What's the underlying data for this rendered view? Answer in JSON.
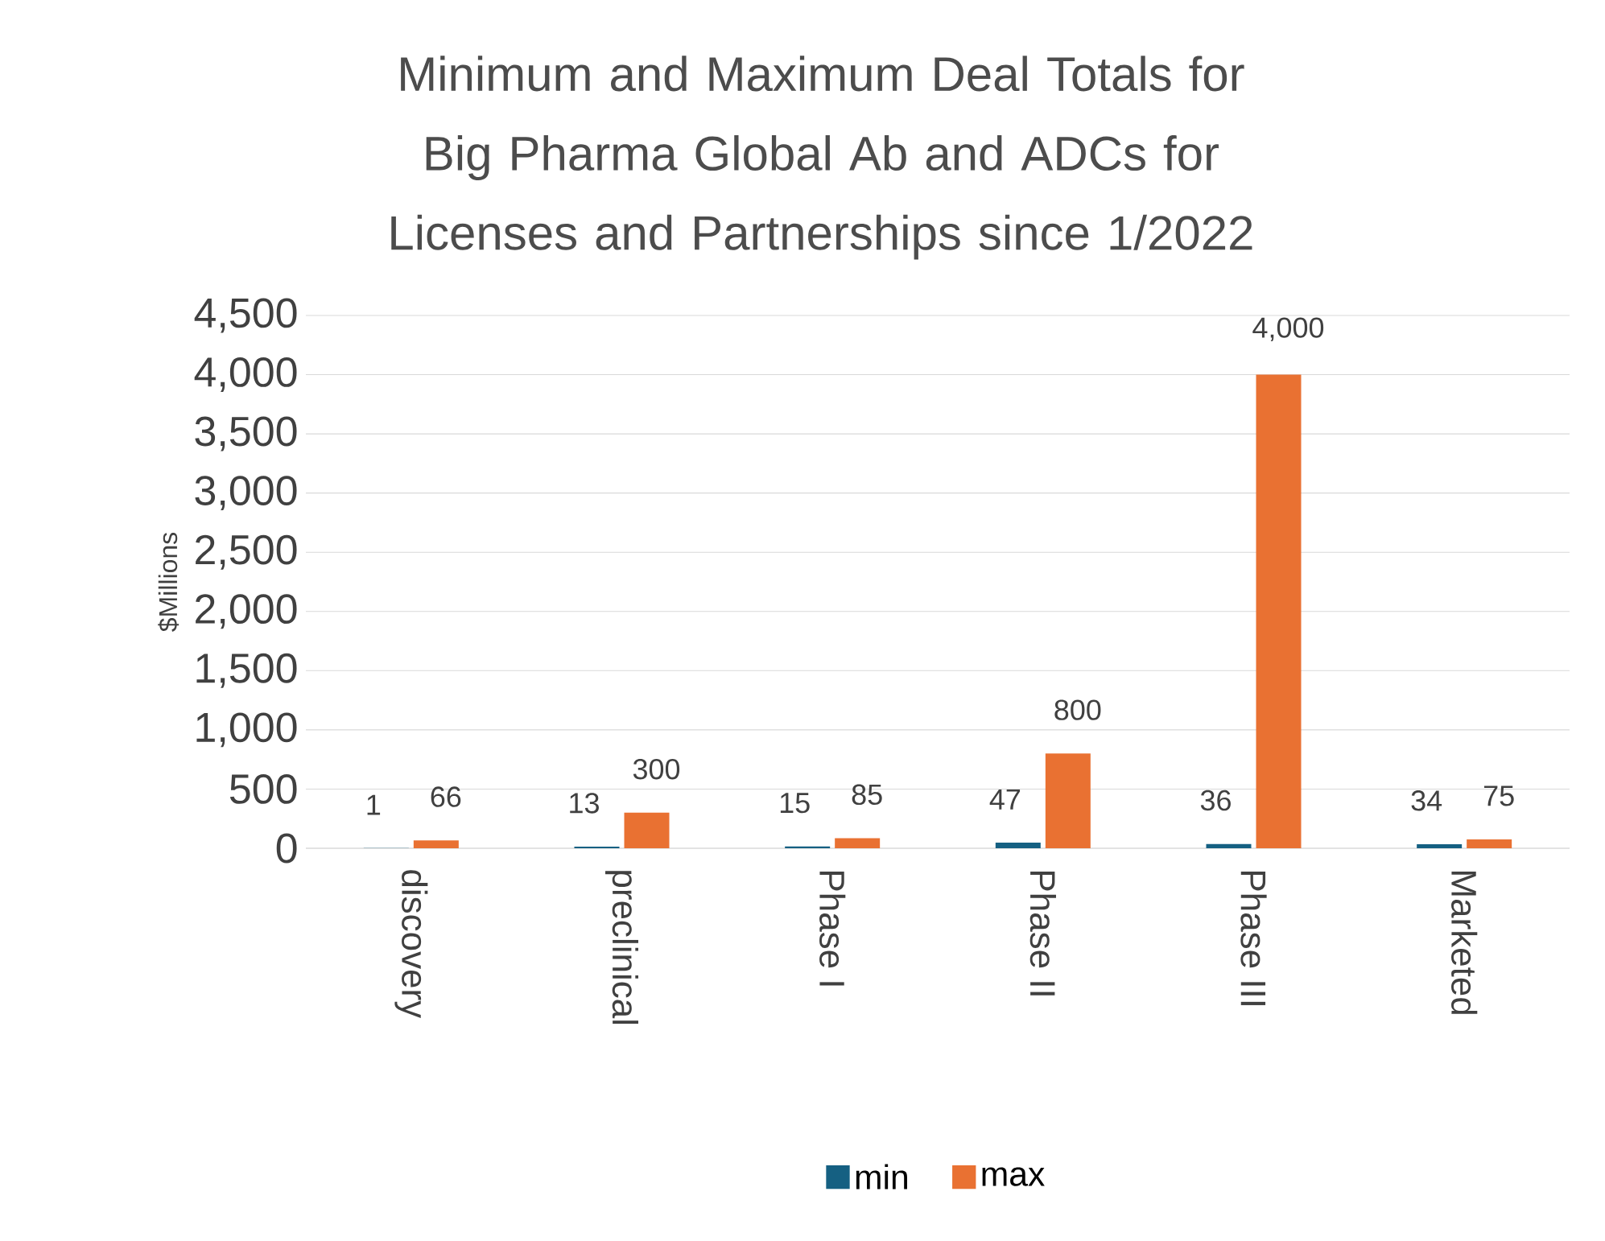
{
  "chart_data": {
    "type": "bar",
    "title": "Minimum and Maximum Deal Totals for Big Pharma Global Ab and ADCs for Licenses and Partnerships since 1/2022",
    "ylabel": "$Millions",
    "categories": [
      "discovery",
      "preclinical",
      "Phase I",
      "Phase II",
      "Phase III",
      "Marketed"
    ],
    "series": [
      {
        "name": "min",
        "color": "#156082",
        "values": [
          1,
          13,
          15,
          47,
          36,
          34
        ],
        "value_labels": [
          "1",
          "13",
          "15",
          "47",
          "36",
          "34"
        ]
      },
      {
        "name": "max",
        "color": "#e97132",
        "values": [
          66,
          300,
          85,
          800,
          4000,
          75
        ],
        "value_labels": [
          "66",
          "300",
          "85",
          "800",
          "4,000",
          "75"
        ]
      }
    ],
    "ylim": [
      0,
      4500
    ],
    "yticks": [
      0,
      {
        "value": 500,
        "label": "500"
      },
      {
        "value": 1000,
        "label": "1,000"
      },
      {
        "value": 1500,
        "label": "1,500"
      },
      {
        "value": 2000,
        "label": "2,000"
      },
      {
        "value": 2500,
        "label": "2,500"
      },
      {
        "value": 3000,
        "label": "3,000"
      },
      {
        "value": 3500,
        "label": "3,500"
      },
      {
        "value": 4000,
        "label": "4,000"
      },
      {
        "value": 4500,
        "label": "4,500"
      }
    ],
    "grid": "y",
    "legend": "bottom"
  }
}
